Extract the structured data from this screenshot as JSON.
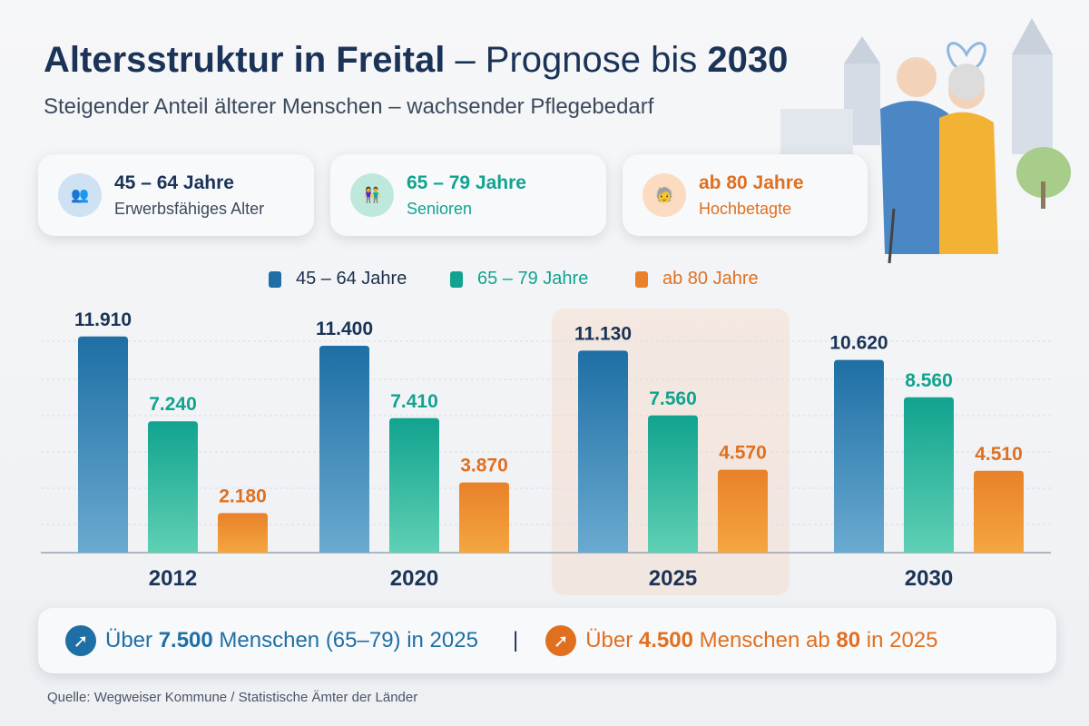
{
  "header": {
    "title_bold": "Altersstruktur in Freital",
    "title_dash": " – Prognose bis ",
    "title_year": "2030",
    "subtitle": "Steigender Anteil älterer Menschen – wachsender Pflegebedarf"
  },
  "cards": [
    {
      "title": "45 – 64 Jahre",
      "subtitle": "Erwerbsfähiges Alter",
      "color": "#1f4e79",
      "icon": "people-icon"
    },
    {
      "title": "65 – 79 Jahre",
      "subtitle": "Senioren",
      "color": "#12a08a",
      "icon": "senior-couple-icon"
    },
    {
      "title": "ab 80 Jahre",
      "subtitle": "Hochbetagte",
      "color": "#e07020",
      "icon": "elderly-cane-icon"
    }
  ],
  "chart_data": {
    "type": "bar",
    "categories": [
      "2012",
      "2020",
      "2025",
      "2030"
    ],
    "series": [
      {
        "name": "45 – 64 Jahre",
        "color": "#1e6fa5",
        "values": [
          11910,
          11400,
          11130,
          10620
        ],
        "labels": [
          "11.910",
          "11.400",
          "11.130",
          "10.620"
        ]
      },
      {
        "name": "65 – 79 Jahre",
        "color": "#11a38f",
        "values": [
          7240,
          7410,
          7560,
          8560
        ],
        "labels": [
          "7.240",
          "7.410",
          "7.560",
          "8.560"
        ]
      },
      {
        "name": "ab 80 Jahre",
        "color": "#e9812a",
        "values": [
          2180,
          3870,
          4570,
          4510
        ],
        "labels": [
          "2.180",
          "3.870",
          "4.570",
          "4.510"
        ]
      }
    ],
    "highlight": "2025",
    "ylim": [
      0,
      12000
    ],
    "grid": true,
    "legend": "top"
  },
  "footer": {
    "left": {
      "pre": "Über ",
      "num": "7.500",
      "post": " Menschen (65–79) in 2025"
    },
    "sep": "|",
    "right": {
      "pre": "Über ",
      "num": "4.500",
      "mid": " Menschen ab ",
      "num2": "80",
      "post": " in 2025"
    },
    "source": "Quelle: Wegweiser Kommune / Statistische Ämter der Länder"
  }
}
